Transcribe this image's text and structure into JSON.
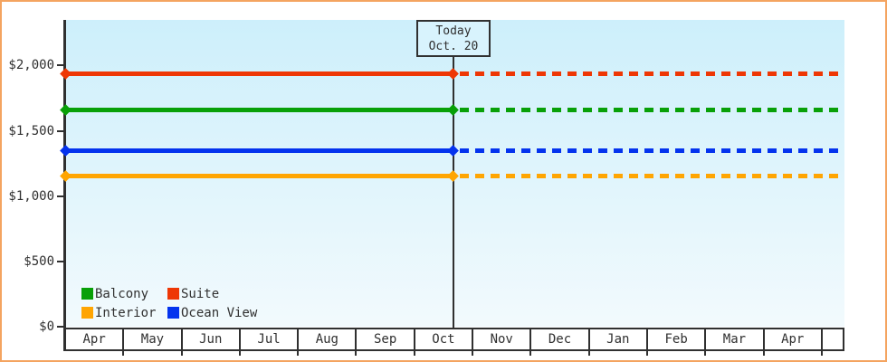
{
  "frame": {
    "border_color": "#f4a460",
    "background_color": "#ffffff",
    "text_color": "#303030"
  },
  "chart_data": {
    "type": "line",
    "title": "",
    "xlabel": "",
    "ylabel": "",
    "y_axis": {
      "tick_labels": [
        "$2,000",
        "$1,500",
        "$1,000",
        "$500",
        "$0"
      ],
      "tick_values": [
        2000,
        1500,
        1000,
        500,
        0
      ],
      "ylim": [
        0,
        2350
      ],
      "grid": false
    },
    "x_axis": {
      "months": [
        "Apr",
        "May",
        "Jun",
        "Jul",
        "Aug",
        "Sep",
        "Oct",
        "Nov",
        "Dec",
        "Jan",
        "Feb",
        "Mar",
        "Apr"
      ]
    },
    "today": {
      "label_line1": "Today",
      "label_line2": "Oct. 20",
      "month_index": 6,
      "day_fraction": 0.65
    },
    "series": [
      {
        "name": "Suite",
        "color": "#ee3705",
        "value": 1940,
        "past_style": "solid",
        "future_style": "dashed"
      },
      {
        "name": "Balcony",
        "color": "#08a008",
        "value": 1660,
        "past_style": "solid",
        "future_style": "dashed"
      },
      {
        "name": "Ocean View",
        "color": "#0433ee",
        "value": 1350,
        "past_style": "solid",
        "future_style": "dashed"
      },
      {
        "name": "Interior",
        "color": "#ffa502",
        "value": 1155,
        "past_style": "solid",
        "future_style": "dashed"
      }
    ],
    "legend": {
      "position": "bottom-left",
      "columns": 2,
      "entries": [
        {
          "label": "Balcony",
          "color": "#08a008"
        },
        {
          "label": "Suite",
          "color": "#ee3705"
        },
        {
          "label": "Interior",
          "color": "#ffa502"
        },
        {
          "label": "Ocean View",
          "color": "#0433ee"
        }
      ]
    },
    "style_hints": {
      "plot_bg_top": "#cdeffb",
      "plot_bg_bottom": "#f2fafd",
      "axis_color": "#303030",
      "today_box_bg": "#d8f3fd"
    }
  }
}
